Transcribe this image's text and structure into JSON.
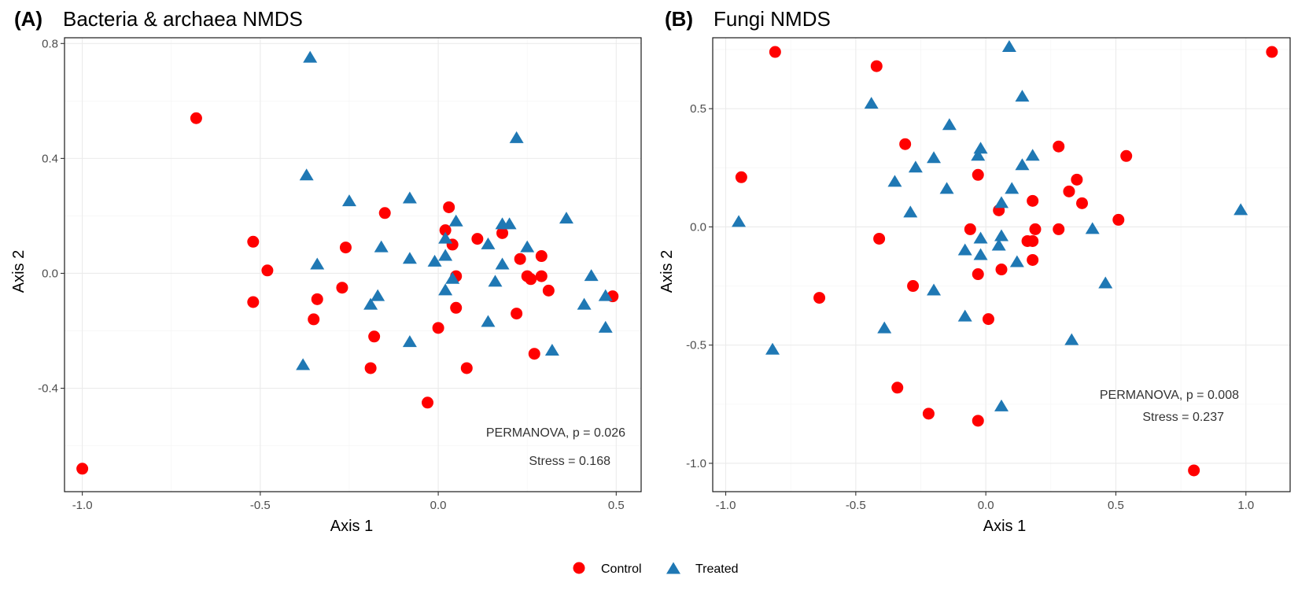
{
  "chart_data": [
    {
      "type": "scatter",
      "panel_tag": "(A)",
      "title": "Bacteria & archaea NMDS",
      "xlabel": "Axis 1",
      "ylabel": "Axis 2",
      "xlim": [
        -1.05,
        0.57
      ],
      "ylim": [
        -0.76,
        0.82
      ],
      "xticks": [
        -1.0,
        -0.5,
        0.0,
        0.5
      ],
      "xtick_labels": [
        "-1.0",
        "-0.5",
        "0.0",
        "0.5"
      ],
      "yticks": [
        -0.4,
        0.0,
        0.4,
        0.8
      ],
      "ytick_labels": [
        "-0.4",
        "0.0",
        "0.4",
        "0.8"
      ],
      "grid": true,
      "annotations": [
        "PERMANOVA, p = 0.026",
        "Stress = 0.168"
      ],
      "series": [
        {
          "name": "Control",
          "color": "#ff0000",
          "marker": "circle",
          "points": [
            [
              -1.0,
              -0.68
            ],
            [
              -0.68,
              0.54
            ],
            [
              -0.52,
              0.11
            ],
            [
              -0.52,
              -0.1
            ],
            [
              -0.48,
              0.01
            ],
            [
              -0.34,
              -0.09
            ],
            [
              -0.35,
              -0.16
            ],
            [
              -0.27,
              -0.05
            ],
            [
              -0.26,
              0.09
            ],
            [
              -0.19,
              -0.33
            ],
            [
              -0.18,
              -0.22
            ],
            [
              -0.15,
              0.21
            ],
            [
              -0.03,
              -0.45
            ],
            [
              0.0,
              -0.19
            ],
            [
              0.02,
              0.15
            ],
            [
              0.03,
              0.23
            ],
            [
              0.04,
              0.1
            ],
            [
              0.05,
              -0.01
            ],
            [
              0.05,
              -0.12
            ],
            [
              0.08,
              -0.33
            ],
            [
              0.11,
              0.12
            ],
            [
              0.18,
              0.14
            ],
            [
              0.22,
              -0.14
            ],
            [
              0.23,
              0.05
            ],
            [
              0.25,
              -0.01
            ],
            [
              0.26,
              -0.02
            ],
            [
              0.27,
              -0.28
            ],
            [
              0.29,
              0.06
            ],
            [
              0.29,
              -0.01
            ],
            [
              0.31,
              -0.06
            ],
            [
              0.49,
              -0.08
            ]
          ]
        },
        {
          "name": "Treated",
          "color": "#1f78b4",
          "marker": "triangle",
          "points": [
            [
              -0.36,
              0.75
            ],
            [
              -0.37,
              0.34
            ],
            [
              -0.38,
              -0.32
            ],
            [
              -0.34,
              0.03
            ],
            [
              -0.25,
              0.25
            ],
            [
              -0.19,
              -0.11
            ],
            [
              -0.17,
              -0.08
            ],
            [
              -0.16,
              0.09
            ],
            [
              -0.08,
              0.26
            ],
            [
              -0.08,
              0.05
            ],
            [
              -0.08,
              -0.24
            ],
            [
              -0.01,
              0.04
            ],
            [
              0.02,
              0.12
            ],
            [
              0.02,
              0.06
            ],
            [
              0.02,
              -0.06
            ],
            [
              0.04,
              -0.02
            ],
            [
              0.05,
              0.18
            ],
            [
              0.14,
              0.1
            ],
            [
              0.14,
              -0.17
            ],
            [
              0.16,
              -0.03
            ],
            [
              0.18,
              0.17
            ],
            [
              0.18,
              0.03
            ],
            [
              0.2,
              0.17
            ],
            [
              0.22,
              0.47
            ],
            [
              0.25,
              0.09
            ],
            [
              0.32,
              -0.27
            ],
            [
              0.36,
              0.19
            ],
            [
              0.41,
              -0.11
            ],
            [
              0.43,
              -0.01
            ],
            [
              0.47,
              -0.08
            ],
            [
              0.47,
              -0.19
            ]
          ]
        }
      ]
    },
    {
      "type": "scatter",
      "panel_tag": "(B)",
      "title": "Fungi NMDS",
      "xlabel": "Axis 1",
      "ylabel": "Axis 2",
      "xlim": [
        -1.05,
        1.17
      ],
      "ylim": [
        -1.12,
        0.8
      ],
      "xticks": [
        -1.0,
        -0.5,
        0.0,
        0.5,
        1.0
      ],
      "xtick_labels": [
        "-1.0",
        "-0.5",
        "0.0",
        "0.5",
        "1.0"
      ],
      "yticks": [
        -1.0,
        -0.5,
        0.0,
        0.5
      ],
      "ytick_labels": [
        "-1.0",
        "-0.5",
        "0.0",
        "0.5"
      ],
      "grid": true,
      "annotations": [
        "PERMANOVA, p = 0.008",
        "Stress = 0.237"
      ],
      "series": [
        {
          "name": "Control",
          "color": "#ff0000",
          "marker": "circle",
          "points": [
            [
              -0.81,
              0.74
            ],
            [
              -0.94,
              0.21
            ],
            [
              -0.64,
              -0.3
            ],
            [
              -0.42,
              0.68
            ],
            [
              -0.41,
              -0.05
            ],
            [
              -0.34,
              -0.68
            ],
            [
              -0.31,
              0.35
            ],
            [
              -0.28,
              -0.25
            ],
            [
              -0.22,
              -0.79
            ],
            [
              -0.06,
              -0.01
            ],
            [
              -0.03,
              0.22
            ],
            [
              -0.03,
              -0.2
            ],
            [
              -0.03,
              -0.82
            ],
            [
              0.01,
              -0.39
            ],
            [
              0.05,
              0.07
            ],
            [
              0.06,
              -0.18
            ],
            [
              0.16,
              -0.06
            ],
            [
              0.18,
              0.11
            ],
            [
              0.18,
              -0.06
            ],
            [
              0.18,
              -0.14
            ],
            [
              0.19,
              -0.01
            ],
            [
              0.28,
              0.34
            ],
            [
              0.28,
              -0.01
            ],
            [
              0.32,
              0.15
            ],
            [
              0.35,
              0.2
            ],
            [
              0.37,
              0.1
            ],
            [
              0.51,
              0.03
            ],
            [
              0.54,
              0.3
            ],
            [
              0.8,
              -1.03
            ],
            [
              1.1,
              0.74
            ]
          ]
        },
        {
          "name": "Treated",
          "color": "#1f78b4",
          "marker": "triangle",
          "points": [
            [
              -0.95,
              0.02
            ],
            [
              -0.82,
              -0.52
            ],
            [
              -0.44,
              0.52
            ],
            [
              -0.39,
              -0.43
            ],
            [
              -0.35,
              0.19
            ],
            [
              -0.29,
              0.06
            ],
            [
              -0.27,
              0.25
            ],
            [
              -0.2,
              0.29
            ],
            [
              -0.2,
              -0.27
            ],
            [
              -0.15,
              0.16
            ],
            [
              -0.14,
              0.43
            ],
            [
              -0.08,
              -0.1
            ],
            [
              -0.08,
              -0.38
            ],
            [
              -0.03,
              0.3
            ],
            [
              -0.02,
              0.33
            ],
            [
              -0.02,
              -0.05
            ],
            [
              -0.02,
              -0.12
            ],
            [
              0.05,
              -0.08
            ],
            [
              0.06,
              0.1
            ],
            [
              0.06,
              -0.04
            ],
            [
              0.06,
              -0.76
            ],
            [
              0.09,
              0.76
            ],
            [
              0.1,
              0.16
            ],
            [
              0.12,
              -0.15
            ],
            [
              0.14,
              0.26
            ],
            [
              0.14,
              0.55
            ],
            [
              0.18,
              0.3
            ],
            [
              0.33,
              -0.48
            ],
            [
              0.41,
              -0.01
            ],
            [
              0.46,
              -0.24
            ],
            [
              0.98,
              0.07
            ]
          ]
        }
      ]
    }
  ],
  "legend": {
    "position": "bottom",
    "items": [
      {
        "label": "Control",
        "color": "#ff0000",
        "marker": "circle"
      },
      {
        "label": "Treated",
        "color": "#1f78b4",
        "marker": "triangle"
      }
    ]
  }
}
